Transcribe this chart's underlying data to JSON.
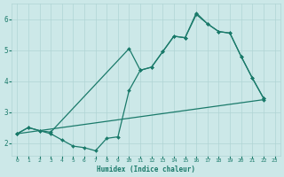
{
  "xlabel": "Humidex (Indice chaleur)",
  "bg_color": "#cce8e8",
  "grid_color": "#b0d4d4",
  "line_color": "#1a7a6a",
  "xlim": [
    -0.5,
    23.5
  ],
  "ylim": [
    1.6,
    6.5
  ],
  "xticks": [
    0,
    1,
    2,
    3,
    4,
    5,
    6,
    7,
    8,
    9,
    10,
    11,
    12,
    13,
    14,
    15,
    16,
    17,
    18,
    19,
    20,
    21,
    22,
    23
  ],
  "yticks": [
    2,
    3,
    4,
    5,
    6
  ],
  "line1_x": [
    0,
    1,
    2,
    3,
    4,
    5,
    6,
    7,
    8,
    9,
    10,
    11,
    12,
    13,
    14,
    15,
    16,
    17,
    18,
    19,
    20,
    21,
    22
  ],
  "line1_y": [
    2.3,
    2.5,
    2.4,
    2.3,
    2.1,
    1.9,
    1.85,
    1.75,
    2.15,
    2.2,
    3.7,
    4.35,
    4.45,
    4.95,
    5.45,
    5.4,
    6.15,
    5.85,
    5.6,
    5.55,
    4.8,
    4.1,
    3.45
  ],
  "line2_x": [
    0,
    1,
    2,
    3,
    10,
    11,
    12,
    13,
    14,
    15,
    16,
    17,
    18,
    19,
    20,
    21,
    22
  ],
  "line2_y": [
    2.3,
    2.5,
    2.4,
    2.35,
    5.05,
    4.35,
    4.45,
    4.95,
    5.45,
    5.4,
    6.2,
    5.85,
    5.6,
    5.55,
    4.8,
    4.1,
    3.45
  ],
  "line3_x": [
    0,
    22
  ],
  "line3_y": [
    2.3,
    3.4
  ]
}
